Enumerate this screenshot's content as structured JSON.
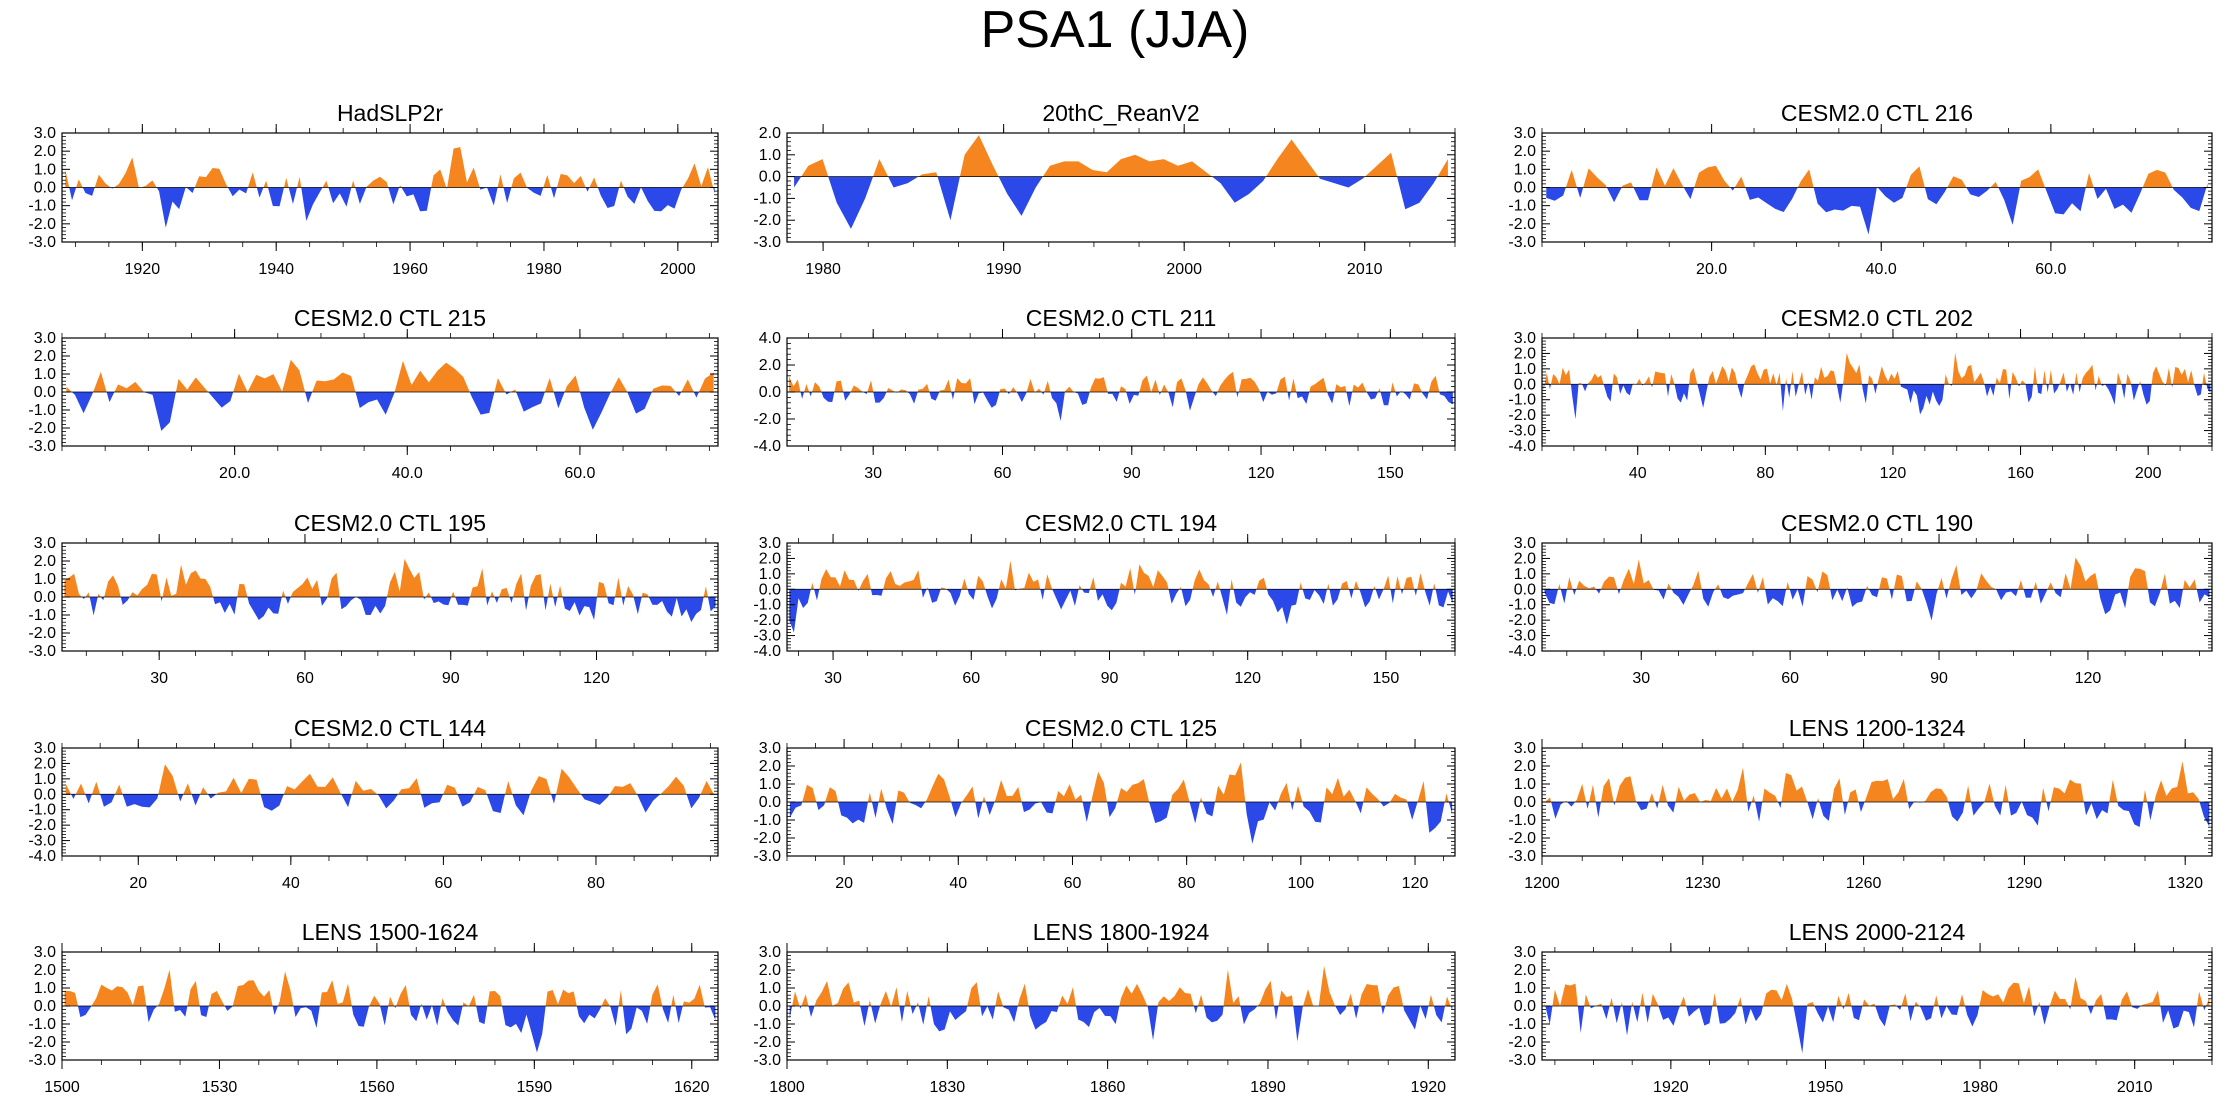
{
  "page_title": "PSA1 (JJA)",
  "colors": {
    "positive": "#f5861f",
    "negative": "#2b48e8",
    "frame": "#000000"
  },
  "chart_data": [
    {
      "type": "area",
      "title": "HadSLP2r",
      "x_range": [
        1908,
        2006
      ],
      "y_range": [
        -3,
        3
      ],
      "y_ticks": [
        "3.0",
        "2.0",
        "1.0",
        "0.0",
        "-1.0",
        "-2.0",
        "-3.0"
      ],
      "x_ticks": [
        {
          "v": 1920,
          "label": "1920"
        },
        {
          "v": 1940,
          "label": "1940"
        },
        {
          "v": 1960,
          "label": "1960"
        },
        {
          "v": 1980,
          "label": "1980"
        },
        {
          "v": 2000,
          "label": "2000"
        }
      ],
      "seed": 11,
      "n": 98
    },
    {
      "type": "area",
      "title": "20thC_ReanV2",
      "x_range": [
        1978,
        2015
      ],
      "y_range": [
        -3,
        2
      ],
      "y_ticks": [
        "2.0",
        "1.0",
        "0.0",
        "-1.0",
        "-2.0",
        "-3.0"
      ],
      "x_ticks": [
        {
          "v": 1980,
          "label": "1980"
        },
        {
          "v": 1990,
          "label": "1990"
        },
        {
          "v": 2000,
          "label": "2000"
        },
        {
          "v": 2010,
          "label": "2010"
        }
      ],
      "seed": 0,
      "n": 0,
      "values": [
        -0.5,
        0.5,
        0.8,
        -1.2,
        -2.4,
        -1.0,
        0.8,
        -0.5,
        -0.3,
        0.1,
        0.2,
        -2.0,
        1.0,
        1.9,
        0.5,
        -0.8,
        -1.8,
        -0.5,
        0.5,
        0.7,
        0.7,
        0.3,
        0.2,
        0.8,
        1.0,
        0.7,
        0.8,
        0.5,
        0.7,
        0.2,
        -0.3,
        -1.2,
        -0.8,
        -0.2,
        0.8,
        1.7,
        0.8,
        -0.1,
        -0.3,
        -0.5,
        -0.1,
        0.5,
        1.1,
        -1.5,
        -1.2,
        -0.3,
        0.8
      ]
    },
    {
      "type": "area",
      "title": "CESM2.0 CTL 216",
      "x_range": [
        0,
        79
      ],
      "y_range": [
        -3,
        3
      ],
      "y_ticks": [
        "3.0",
        "2.0",
        "1.0",
        "0.0",
        "-1.0",
        "-2.0",
        "-3.0"
      ],
      "x_ticks": [
        {
          "v": 20,
          "label": "20.0"
        },
        {
          "v": 40,
          "label": "40.0"
        },
        {
          "v": 60,
          "label": "60.0"
        }
      ],
      "seed": 21,
      "n": 79
    },
    {
      "type": "area",
      "title": "CESM2.0 CTL 215",
      "x_range": [
        0,
        76
      ],
      "y_range": [
        -3,
        3
      ],
      "y_ticks": [
        "3.0",
        "2.0",
        "1.0",
        "0.0",
        "-1.0",
        "-2.0",
        "-3.0"
      ],
      "x_ticks": [
        {
          "v": 20,
          "label": "20.0"
        },
        {
          "v": 40,
          "label": "40.0"
        },
        {
          "v": 60,
          "label": "60.0"
        }
      ],
      "seed": 31,
      "n": 76
    },
    {
      "type": "area",
      "title": "CESM2.0 CTL 211",
      "x_range": [
        10,
        165
      ],
      "y_range": [
        -4,
        4
      ],
      "y_ticks": [
        "4.0",
        "2.0",
        "0.0",
        "-2.0",
        "-4.0"
      ],
      "x_ticks": [
        {
          "v": 30,
          "label": "30"
        },
        {
          "v": 60,
          "label": "60"
        },
        {
          "v": 90,
          "label": "90"
        },
        {
          "v": 120,
          "label": "120"
        },
        {
          "v": 150,
          "label": "150"
        }
      ],
      "seed": 41,
      "n": 155
    },
    {
      "type": "area",
      "title": "CESM2.0 CTL 202",
      "x_range": [
        10,
        220
      ],
      "y_range": [
        -4,
        3
      ],
      "y_ticks": [
        "3.0",
        "2.0",
        "1.0",
        "0.0",
        "-1.0",
        "-2.0",
        "-3.0",
        "-4.0"
      ],
      "x_ticks": [
        {
          "v": 40,
          "label": "40"
        },
        {
          "v": 80,
          "label": "80"
        },
        {
          "v": 120,
          "label": "120"
        },
        {
          "v": 160,
          "label": "160"
        },
        {
          "v": 200,
          "label": "200"
        }
      ],
      "seed": 51,
      "n": 210
    },
    {
      "type": "area",
      "title": "CESM2.0 CTL 195",
      "x_range": [
        10,
        145
      ],
      "y_range": [
        -3,
        3
      ],
      "y_ticks": [
        "3.0",
        "2.0",
        "1.0",
        "0.0",
        "-1.0",
        "-2.0",
        "-3.0"
      ],
      "x_ticks": [
        {
          "v": 30,
          "label": "30"
        },
        {
          "v": 60,
          "label": "60"
        },
        {
          "v": 90,
          "label": "90"
        },
        {
          "v": 120,
          "label": "120"
        }
      ],
      "seed": 61,
      "n": 135
    },
    {
      "type": "area",
      "title": "CESM2.0 CTL 194",
      "x_range": [
        20,
        165
      ],
      "y_range": [
        -4,
        3
      ],
      "y_ticks": [
        "3.0",
        "2.0",
        "1.0",
        "0.0",
        "-1.0",
        "-2.0",
        "-3.0",
        "-4.0"
      ],
      "x_ticks": [
        {
          "v": 30,
          "label": "30"
        },
        {
          "v": 60,
          "label": "60"
        },
        {
          "v": 90,
          "label": "90"
        },
        {
          "v": 120,
          "label": "120"
        },
        {
          "v": 150,
          "label": "150"
        }
      ],
      "seed": 71,
      "n": 145
    },
    {
      "type": "area",
      "title": "CESM2.0 CTL 190",
      "x_range": [
        10,
        145
      ],
      "y_range": [
        -4,
        3
      ],
      "y_ticks": [
        "3.0",
        "2.0",
        "1.0",
        "0.0",
        "-1.0",
        "-2.0",
        "-3.0",
        "-4.0"
      ],
      "x_ticks": [
        {
          "v": 30,
          "label": "30"
        },
        {
          "v": 60,
          "label": "60"
        },
        {
          "v": 90,
          "label": "90"
        },
        {
          "v": 120,
          "label": "120"
        }
      ],
      "seed": 81,
      "n": 135
    },
    {
      "type": "area",
      "title": "CESM2.0 CTL 144",
      "x_range": [
        10,
        96
      ],
      "y_range": [
        -4,
        3
      ],
      "y_ticks": [
        "3.0",
        "2.0",
        "1.0",
        "0.0",
        "-1.0",
        "-2.0",
        "-3.0",
        "-4.0"
      ],
      "x_ticks": [
        {
          "v": 20,
          "label": "20"
        },
        {
          "v": 40,
          "label": "40"
        },
        {
          "v": 60,
          "label": "60"
        },
        {
          "v": 80,
          "label": "80"
        }
      ],
      "seed": 91,
      "n": 86
    },
    {
      "type": "area",
      "title": "CESM2.0 CTL 125",
      "x_range": [
        10,
        127
      ],
      "y_range": [
        -3,
        3
      ],
      "y_ticks": [
        "3.0",
        "2.0",
        "1.0",
        "0.0",
        "-1.0",
        "-2.0",
        "-3.0"
      ],
      "x_ticks": [
        {
          "v": 20,
          "label": "20"
        },
        {
          "v": 40,
          "label": "40"
        },
        {
          "v": 60,
          "label": "60"
        },
        {
          "v": 80,
          "label": "80"
        },
        {
          "v": 100,
          "label": "100"
        },
        {
          "v": 120,
          "label": "120"
        }
      ],
      "seed": 101,
      "n": 117
    },
    {
      "type": "area",
      "title": "LENS 1200-1324",
      "x_range": [
        1200,
        1325
      ],
      "y_range": [
        -3,
        3
      ],
      "y_ticks": [
        "3.0",
        "2.0",
        "1.0",
        "0.0",
        "-1.0",
        "-2.0",
        "-3.0"
      ],
      "x_ticks": [
        {
          "v": 1200,
          "label": "1200"
        },
        {
          "v": 1230,
          "label": "1230"
        },
        {
          "v": 1260,
          "label": "1260"
        },
        {
          "v": 1290,
          "label": "1290"
        },
        {
          "v": 1320,
          "label": "1320"
        }
      ],
      "seed": 111,
      "n": 125
    },
    {
      "type": "area",
      "title": "LENS 1500-1624",
      "x_range": [
        1500,
        1625
      ],
      "y_range": [
        -3,
        3
      ],
      "y_ticks": [
        "3.0",
        "2.0",
        "1.0",
        "0.0",
        "-1.0",
        "-2.0",
        "-3.0"
      ],
      "x_ticks": [
        {
          "v": 1500,
          "label": "1500"
        },
        {
          "v": 1530,
          "label": "1530"
        },
        {
          "v": 1560,
          "label": "1560"
        },
        {
          "v": 1590,
          "label": "1590"
        },
        {
          "v": 1620,
          "label": "1620"
        }
      ],
      "seed": 121,
      "n": 125
    },
    {
      "type": "area",
      "title": "LENS 1800-1924",
      "x_range": [
        1800,
        1925
      ],
      "y_range": [
        -3,
        3
      ],
      "y_ticks": [
        "3.0",
        "2.0",
        "1.0",
        "0.0",
        "-1.0",
        "-2.0",
        "-3.0"
      ],
      "x_ticks": [
        {
          "v": 1800,
          "label": "1800"
        },
        {
          "v": 1830,
          "label": "1830"
        },
        {
          "v": 1860,
          "label": "1860"
        },
        {
          "v": 1890,
          "label": "1890"
        },
        {
          "v": 1920,
          "label": "1920"
        }
      ],
      "seed": 131,
      "n": 125
    },
    {
      "type": "area",
      "title": "LENS 2000-2124",
      "x_range": [
        1895,
        2025
      ],
      "y_range": [
        -3,
        3
      ],
      "y_ticks": [
        "3.0",
        "2.0",
        "1.0",
        "0.0",
        "-1.0",
        "-2.0",
        "-3.0"
      ],
      "x_ticks": [
        {
          "v": 1920,
          "label": "1920"
        },
        {
          "v": 1950,
          "label": "1950"
        },
        {
          "v": 1980,
          "label": "1980"
        },
        {
          "v": 2010,
          "label": "2010"
        }
      ],
      "seed": 141,
      "n": 130
    }
  ]
}
